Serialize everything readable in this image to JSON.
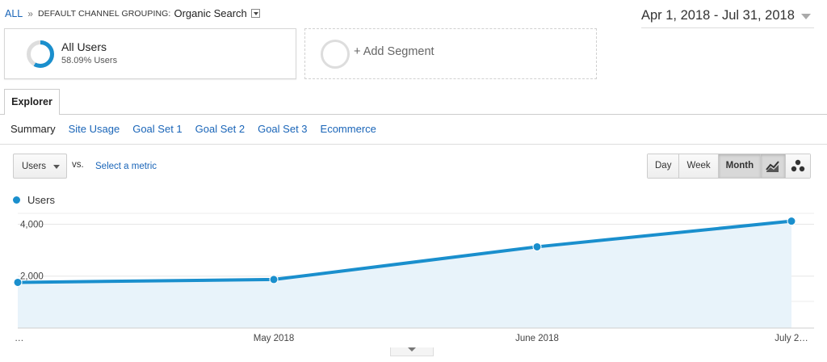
{
  "breadcrumb": {
    "all": "ALL",
    "separator": "»",
    "dimension": "DEFAULT CHANNEL GROUPING:",
    "value": "Organic Search"
  },
  "date_range": "Apr 1, 2018 - Jul 31, 2018",
  "segments": {
    "active": {
      "title": "All Users",
      "subtitle": "58.09% Users",
      "percent": 58.09
    },
    "add_label": "+ Add Segment"
  },
  "tabs": {
    "explorer": "Explorer"
  },
  "subtabs": [
    "Summary",
    "Site Usage",
    "Goal Set 1",
    "Goal Set 2",
    "Goal Set 3",
    "Ecommerce"
  ],
  "metric": {
    "selected": "Users",
    "vs": "vs.",
    "select_metric": "Select a metric"
  },
  "granularity": {
    "options": [
      "Day",
      "Week",
      "Month"
    ],
    "selected": "Month"
  },
  "chart_type_buttons": [
    "line-chart-icon",
    "motion-chart-icon"
  ],
  "colors": {
    "series": "#1a8fcd",
    "area": "#e8f3fa",
    "link": "#1a65b8",
    "donut_track": "#dddddd"
  },
  "chart_data": {
    "type": "line",
    "series": [
      {
        "name": "Users",
        "values": [
          1760,
          1870,
          3130,
          4120
        ]
      }
    ],
    "x_positions_labels": [
      "…",
      "May 2018",
      "June 2018",
      "July 2…"
    ],
    "yticks": [
      "2,000",
      "4,000"
    ],
    "ylim": [
      0,
      4700
    ],
    "grid": true
  }
}
